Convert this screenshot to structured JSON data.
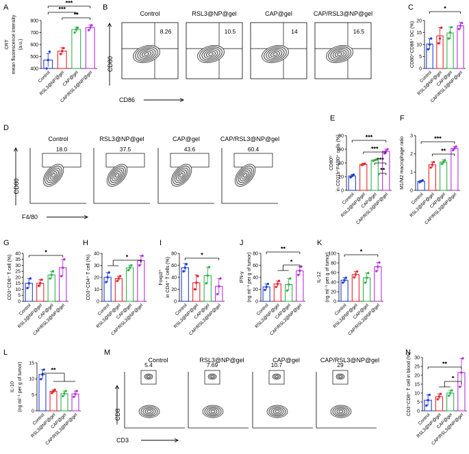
{
  "colors": {
    "Control": "#1f3fd6",
    "RSL3@NP@gel": "#e8232a",
    "CAP@gel": "#2fb24a",
    "CAP/RSL3@NP@gel": "#b62ee0"
  },
  "groups": [
    "Control",
    "RSL3@NP@gel",
    "CAP@gel",
    "CAP/RSL3@NP@gel"
  ],
  "chart_data": [
    {
      "panel": "A",
      "type": "bar",
      "categories": [
        "Control",
        "RSL3@NP@gel",
        "CAP@gel",
        "CAP/RSL3@NP@gel"
      ],
      "values": [
        470,
        545,
        725,
        742
      ],
      "errors": [
        55,
        28,
        22,
        22
      ],
      "points": [
        [
          400,
          470,
          540
        ],
        [
          520,
          545,
          570
        ],
        [
          700,
          725,
          740
        ],
        [
          720,
          742,
          760
        ]
      ],
      "ylabel_lines": [
        "CRT",
        "mean fluorescence intensity",
        "(a.u.)"
      ],
      "ylim": [
        400,
        800
      ],
      "yticks": [
        400,
        500,
        600,
        700,
        800
      ],
      "sig": [
        {
          "label": "***"
        },
        {
          "label": "***"
        },
        {
          "label": "**"
        }
      ]
    },
    {
      "panel": "C",
      "type": "bar",
      "categories": [
        "Control",
        "RSL3@NP@gel",
        "CAP@gel",
        "CAP/RSL3@NP@gel"
      ],
      "values": [
        10.2,
        13.6,
        14.8,
        17.8
      ],
      "errors": [
        2.2,
        3.5,
        2.5,
        1.4
      ],
      "points": [
        [
          8,
          10,
          12.5
        ],
        [
          10.5,
          12.5,
          17
        ],
        [
          12.5,
          15,
          17.2
        ],
        [
          16.5,
          17.8,
          19
        ]
      ],
      "ylabel_lines": [
        "CD80⁺CD86⁺ DC (%)"
      ],
      "ylim": [
        0,
        20
      ],
      "yticks": [
        0,
        5,
        10,
        15,
        20
      ],
      "sig": [
        {
          "label": "*"
        }
      ]
    },
    {
      "panel": "E",
      "type": "bar",
      "categories": [
        "Control",
        "RSL3@NP@gel",
        "CAP@gel",
        "CAP/RSL3@NP@gel"
      ],
      "values": [
        21,
        38,
        44,
        57
      ],
      "errors": [
        2,
        1.5,
        1,
        3
      ],
      "points": [
        [
          19,
          21,
          23
        ],
        [
          37,
          38,
          39
        ],
        [
          43,
          44,
          45
        ],
        [
          54,
          57,
          60
        ]
      ],
      "ylabel_lines": [
        "CD80ʰⁱ",
        "in CD11b⁺F4/80⁺ cells (%)"
      ],
      "ylim": [
        0,
        80
      ],
      "yticks": [
        0,
        20,
        40,
        60,
        80
      ],
      "sig": [
        {
          "label": "***"
        },
        {
          "label": "***"
        },
        {
          "label": "***"
        },
        {
          "label": "**"
        }
      ]
    },
    {
      "panel": "F",
      "type": "bar",
      "categories": [
        "Control",
        "RSL3@NP@gel",
        "CAP@gel",
        "CAP/RSL3@NP@gel"
      ],
      "values": [
        0.5,
        1.4,
        1.55,
        2.3
      ],
      "errors": [
        0.05,
        0.15,
        0.12,
        0.1
      ],
      "points": [
        [
          0.45,
          0.5,
          0.55
        ],
        [
          1.25,
          1.4,
          1.55
        ],
        [
          1.45,
          1.55,
          1.65
        ],
        [
          2.2,
          2.3,
          2.4
        ]
      ],
      "ylabel_lines": [
        "M1/M2 macrophage ratio"
      ],
      "ylim": [
        0,
        3
      ],
      "yticks": [
        0,
        1,
        2,
        3
      ],
      "sig": [
        {
          "label": "***"
        },
        {
          "label": "**"
        }
      ]
    },
    {
      "panel": "G",
      "type": "bar",
      "categories": [
        "Control",
        "RSL3@NP@gel",
        "CAP@gel",
        "CAP/RSL3@NP@gel"
      ],
      "values": [
        15,
        15,
        22,
        28
      ],
      "errors": [
        4,
        3,
        3,
        7
      ],
      "points": [
        [
          11,
          15,
          19
        ],
        [
          13,
          15,
          18
        ],
        [
          19,
          22,
          25
        ],
        [
          21,
          28,
          35
        ]
      ],
      "ylabel_lines": [
        "CD3⁺CD8⁺ T cell (%)"
      ],
      "ylim": [
        0,
        40
      ],
      "yticks": [
        0,
        5,
        10,
        15,
        20,
        25,
        30,
        35,
        40
      ],
      "sig": [
        {
          "label": "*"
        }
      ]
    },
    {
      "panel": "H",
      "type": "bar",
      "categories": [
        "Control",
        "RSL3@NP@gel",
        "CAP@gel",
        "CAP/RSL3@NP@gel"
      ],
      "values": [
        20,
        19,
        28,
        34
      ],
      "errors": [
        4,
        2,
        2,
        4
      ],
      "points": [
        [
          16,
          20,
          24
        ],
        [
          17,
          19,
          21
        ],
        [
          26,
          28,
          30
        ],
        [
          30,
          34,
          38
        ]
      ],
      "ylabel_lines": [
        "CD3⁺CD4⁺ T cell (%)"
      ],
      "ylim": [
        0,
        40
      ],
      "yticks": [
        0,
        10,
        20,
        30,
        40
      ],
      "sig": [
        {
          "label": "*"
        }
      ]
    },
    {
      "panel": "I",
      "type": "bar",
      "categories": [
        "Control",
        "RSL3@NP@gel",
        "CAP@gel",
        "CAP/RSL3@NP@gel"
      ],
      "values": [
        56,
        31,
        43,
        25
      ],
      "errors": [
        7,
        13,
        14,
        13
      ],
      "points": [
        [
          50,
          56,
          62
        ],
        [
          20,
          31,
          42
        ],
        [
          30,
          43,
          57
        ],
        [
          12,
          25,
          38
        ]
      ],
      "ylabel_lines": [
        "Foxp3⁺",
        "in CD4⁺ T cells (%)"
      ],
      "ylim": [
        0,
        80
      ],
      "yticks": [
        0,
        20,
        40,
        60,
        80
      ],
      "sig": [
        {
          "label": "*"
        }
      ]
    },
    {
      "panel": "J",
      "type": "bar",
      "categories": [
        "Control",
        "RSL3@NP@gel",
        "CAP@gel",
        "CAP/RSL3@NP@gel"
      ],
      "values": [
        24,
        29,
        28,
        51
      ],
      "errors": [
        5,
        5,
        10,
        7
      ],
      "points": [
        [
          19,
          24,
          29
        ],
        [
          24,
          29,
          34
        ],
        [
          18,
          28,
          38
        ],
        [
          44,
          51,
          58
        ]
      ],
      "ylabel_lines": [
        "IFN-γ",
        "(ng ml⁻¹ per g of tumor)"
      ],
      "ylim": [
        0,
        80
      ],
      "yticks": [
        0,
        20,
        40,
        60,
        80
      ],
      "sig": [
        {
          "label": "**"
        },
        {
          "label": "*"
        }
      ]
    },
    {
      "panel": "K",
      "type": "bar",
      "categories": [
        "Control",
        "RSL3@NP@gel",
        "CAP@gel",
        "CAP/RSL3@NP@gel"
      ],
      "values": [
        44,
        56,
        49,
        72
      ],
      "errors": [
        5,
        6,
        10,
        9
      ],
      "points": [
        [
          39,
          44,
          49
        ],
        [
          50,
          56,
          62
        ],
        [
          39,
          49,
          59
        ],
        [
          63,
          72,
          81
        ]
      ],
      "ylabel_lines": [
        "IL-12",
        "(ng ml⁻¹ per g of tumor)"
      ],
      "ylim": [
        0,
        100
      ],
      "yticks": [
        0,
        20,
        40,
        60,
        80,
        100
      ],
      "sig": [
        {
          "label": "*"
        }
      ]
    },
    {
      "panel": "L",
      "type": "bar",
      "categories": [
        "Control",
        "RSL3@NP@gel",
        "CAP@gel",
        "CAP/RSL3@NP@gel"
      ],
      "values": [
        11.4,
        6.1,
        5.4,
        5.3
      ],
      "errors": [
        1.5,
        0.5,
        0.8,
        0.9
      ],
      "points": [
        [
          9.9,
          11.4,
          12.9
        ],
        [
          5.6,
          6.1,
          6.6
        ],
        [
          4.6,
          5.4,
          6.2
        ],
        [
          4.4,
          5.3,
          6.2
        ]
      ],
      "ylabel_lines": [
        "IL-10",
        "(ng ml⁻¹ per g of tumor)"
      ],
      "ylim": [
        0,
        15
      ],
      "yticks": [
        0,
        5,
        10,
        15
      ],
      "sig": [
        {
          "label": "**"
        }
      ]
    },
    {
      "panel": "N",
      "type": "bar",
      "categories": [
        "Control",
        "RSL3@NP@gel",
        "CAP@gel",
        "CAP/RSL3@NP@gel"
      ],
      "values": [
        6,
        8,
        10,
        21.5
      ],
      "errors": [
        3,
        1.5,
        1.5,
        8
      ],
      "points": [
        [
          3,
          6,
          9
        ],
        [
          6.5,
          8,
          9.5
        ],
        [
          8.5,
          10,
          11.5
        ],
        [
          13.5,
          21.5,
          29.5
        ]
      ],
      "ylabel_lines": [
        "CD3⁺CD8⁺ T cell in blood (%)"
      ],
      "ylim": [
        0,
        30
      ],
      "yticks": [
        0,
        5,
        10,
        15,
        20,
        25,
        30
      ],
      "sig": [
        {
          "label": "**"
        },
        {
          "label": "*"
        }
      ]
    }
  ],
  "flow_panels": [
    {
      "panel": "B",
      "xlabel": "CD86",
      "ylabel": "CD80",
      "titles": [
        "Control",
        "RSL3@NP@gel",
        "CAP@gel",
        "CAP/RSL3@NP@gel"
      ],
      "values": [
        "8.26",
        "10.5",
        "14",
        "16.5"
      ]
    },
    {
      "panel": "D",
      "xlabel": "F4/80",
      "ylabel": "CD80",
      "titles": [
        "Control",
        "RSL3@NP@gel",
        "CAP@gel",
        "CAP/RSL3@NP@gel"
      ],
      "values": [
        "18.0",
        "37.5",
        "43.6",
        "60.4"
      ]
    },
    {
      "panel": "M",
      "xlabel": "CD3",
      "ylabel": "CD8",
      "titles": [
        "Control",
        "RSL3@NP@gel",
        "CAP@gel",
        "CAP/RSL3@NP@gel"
      ],
      "values": [
        "5.4",
        "7.69",
        "10.7",
        "29"
      ]
    }
  ],
  "panel_letters": [
    "A",
    "B",
    "C",
    "D",
    "E",
    "F",
    "G",
    "H",
    "I",
    "J",
    "K",
    "L",
    "M",
    "N"
  ]
}
